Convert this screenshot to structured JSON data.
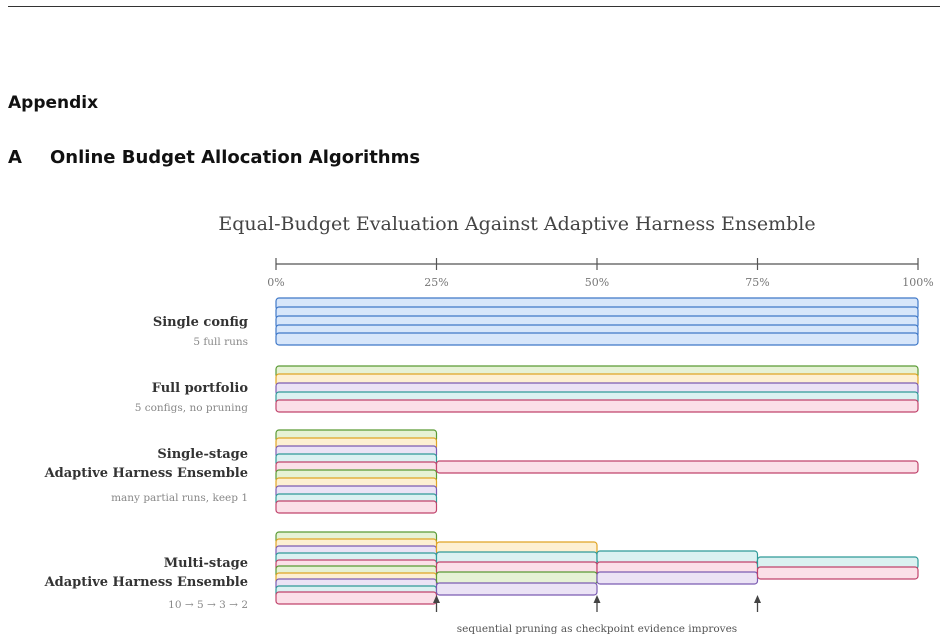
{
  "appendix_heading": "Appendix",
  "section": {
    "number": "A",
    "title": "Online Budget Allocation Algorithms"
  },
  "figure": {
    "title": "Equal-Budget Evaluation Against Adaptive Harness Ensemble",
    "axis_ticks": [
      "0%",
      "25%",
      "50%",
      "75%",
      "100%"
    ],
    "palette": {
      "blue": {
        "fill": "#d7e6fa",
        "stroke": "#3f78c8"
      },
      "green": {
        "fill": "#e6f2d5",
        "stroke": "#5a9a35"
      },
      "orange": {
        "fill": "#fdf0d2",
        "stroke": "#e0a525"
      },
      "purple": {
        "fill": "#ebe3f5",
        "stroke": "#7b5cb2"
      },
      "teal": {
        "fill": "#dbf1f1",
        "stroke": "#2f9a98"
      },
      "pink": {
        "fill": "#fbe0e8",
        "stroke": "#c0446c"
      }
    },
    "groups": [
      {
        "label_lines": [
          "Single config"
        ],
        "sublabel": "5 full runs"
      },
      {
        "label_lines": [
          "Full portfolio"
        ],
        "sublabel": "5 configs, no pruning"
      },
      {
        "label_lines": [
          "Single-stage",
          "Adaptive Harness Ensemble"
        ],
        "sublabel": "many partial runs, keep 1"
      },
      {
        "label_lines": [
          "Multi-stage",
          "Adaptive Harness Ensemble"
        ],
        "sublabel": "10 → 5 → 3 → 2"
      }
    ],
    "annotation": "sequential pruning as checkpoint evidence improves"
  }
}
